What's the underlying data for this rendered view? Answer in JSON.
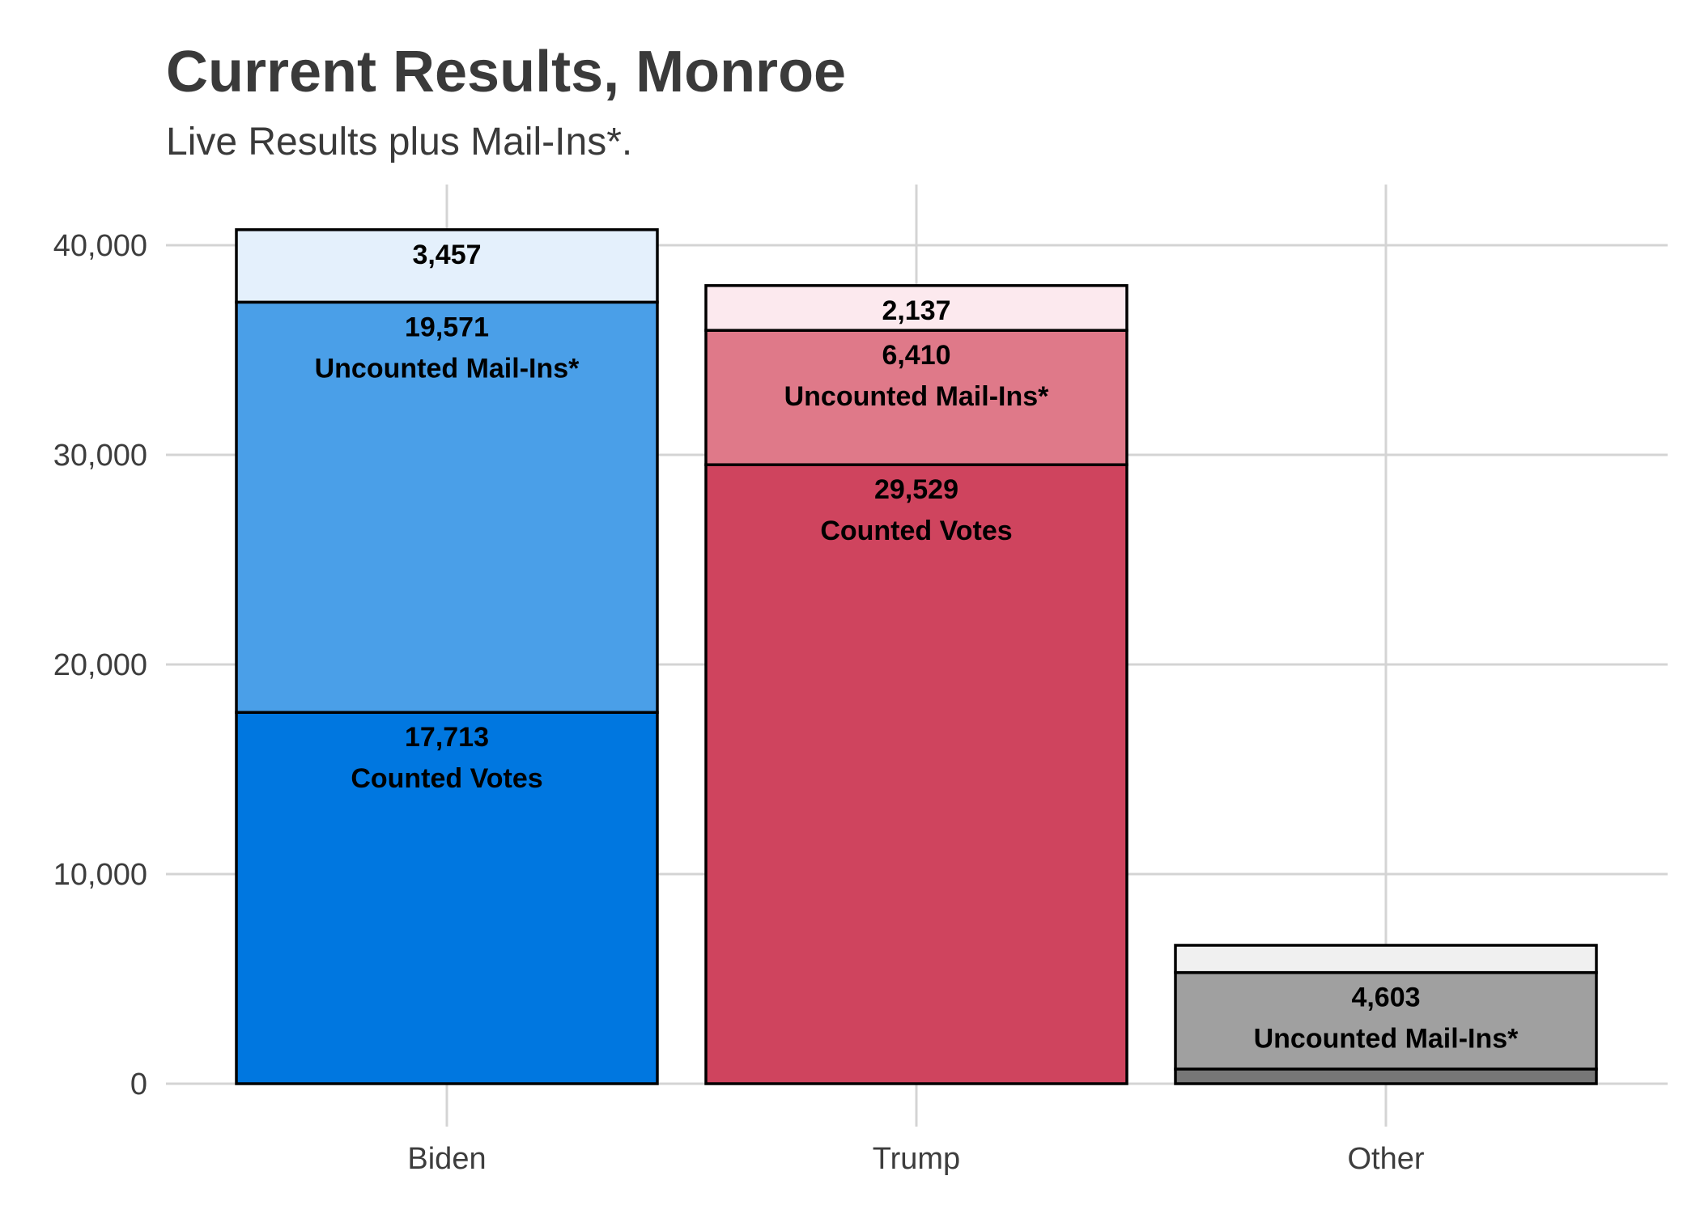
{
  "chart_data": {
    "type": "bar",
    "stacked": true,
    "title": "Current Results, Monroe",
    "subtitle": "Live Results plus Mail-Ins*.",
    "xlabel": "",
    "ylabel": "",
    "ylim": [
      0,
      42700
    ],
    "yticks": [
      0,
      10000,
      20000,
      30000,
      40000
    ],
    "ytick_labels": [
      "0",
      "10,000",
      "20,000",
      "30,000",
      "40,000"
    ],
    "grid": true,
    "legend": "none",
    "categories": [
      "Biden",
      "Trump",
      "Other"
    ],
    "bars": [
      {
        "category": "Biden",
        "segments": [
          {
            "layer": "counted",
            "value": 17713,
            "value_label": "17,713",
            "text": "Counted Votes",
            "color": "#0077E0"
          },
          {
            "layer": "uncounted",
            "value": 19571,
            "value_label": "19,571",
            "text": "Uncounted Mail-Ins*",
            "color": "#4A9FE8"
          },
          {
            "layer": "remaining",
            "value": 3457,
            "value_label": "3,457",
            "text": "",
            "color": "#E4F0FC"
          }
        ]
      },
      {
        "category": "Trump",
        "segments": [
          {
            "layer": "counted",
            "value": 29529,
            "value_label": "29,529",
            "text": "Counted Votes",
            "color": "#CF445E"
          },
          {
            "layer": "uncounted",
            "value": 6410,
            "value_label": "6,410",
            "text": "Uncounted Mail-Ins*",
            "color": "#DF7989"
          },
          {
            "layer": "remaining",
            "value": 2137,
            "value_label": "2,137",
            "text": "",
            "color": "#FCE9EE"
          }
        ]
      },
      {
        "category": "Other",
        "segments": [
          {
            "layer": "counted",
            "value": 700,
            "value_label": "",
            "text": "",
            "color": "#777777"
          },
          {
            "layer": "uncounted",
            "value": 4603,
            "value_label": "4,603",
            "text": "Uncounted Mail-Ins*",
            "color": "#A0A0A0"
          },
          {
            "layer": "remaining",
            "value": 1300,
            "value_label": "",
            "text": "",
            "color": "#F0F0F0"
          }
        ]
      }
    ]
  }
}
